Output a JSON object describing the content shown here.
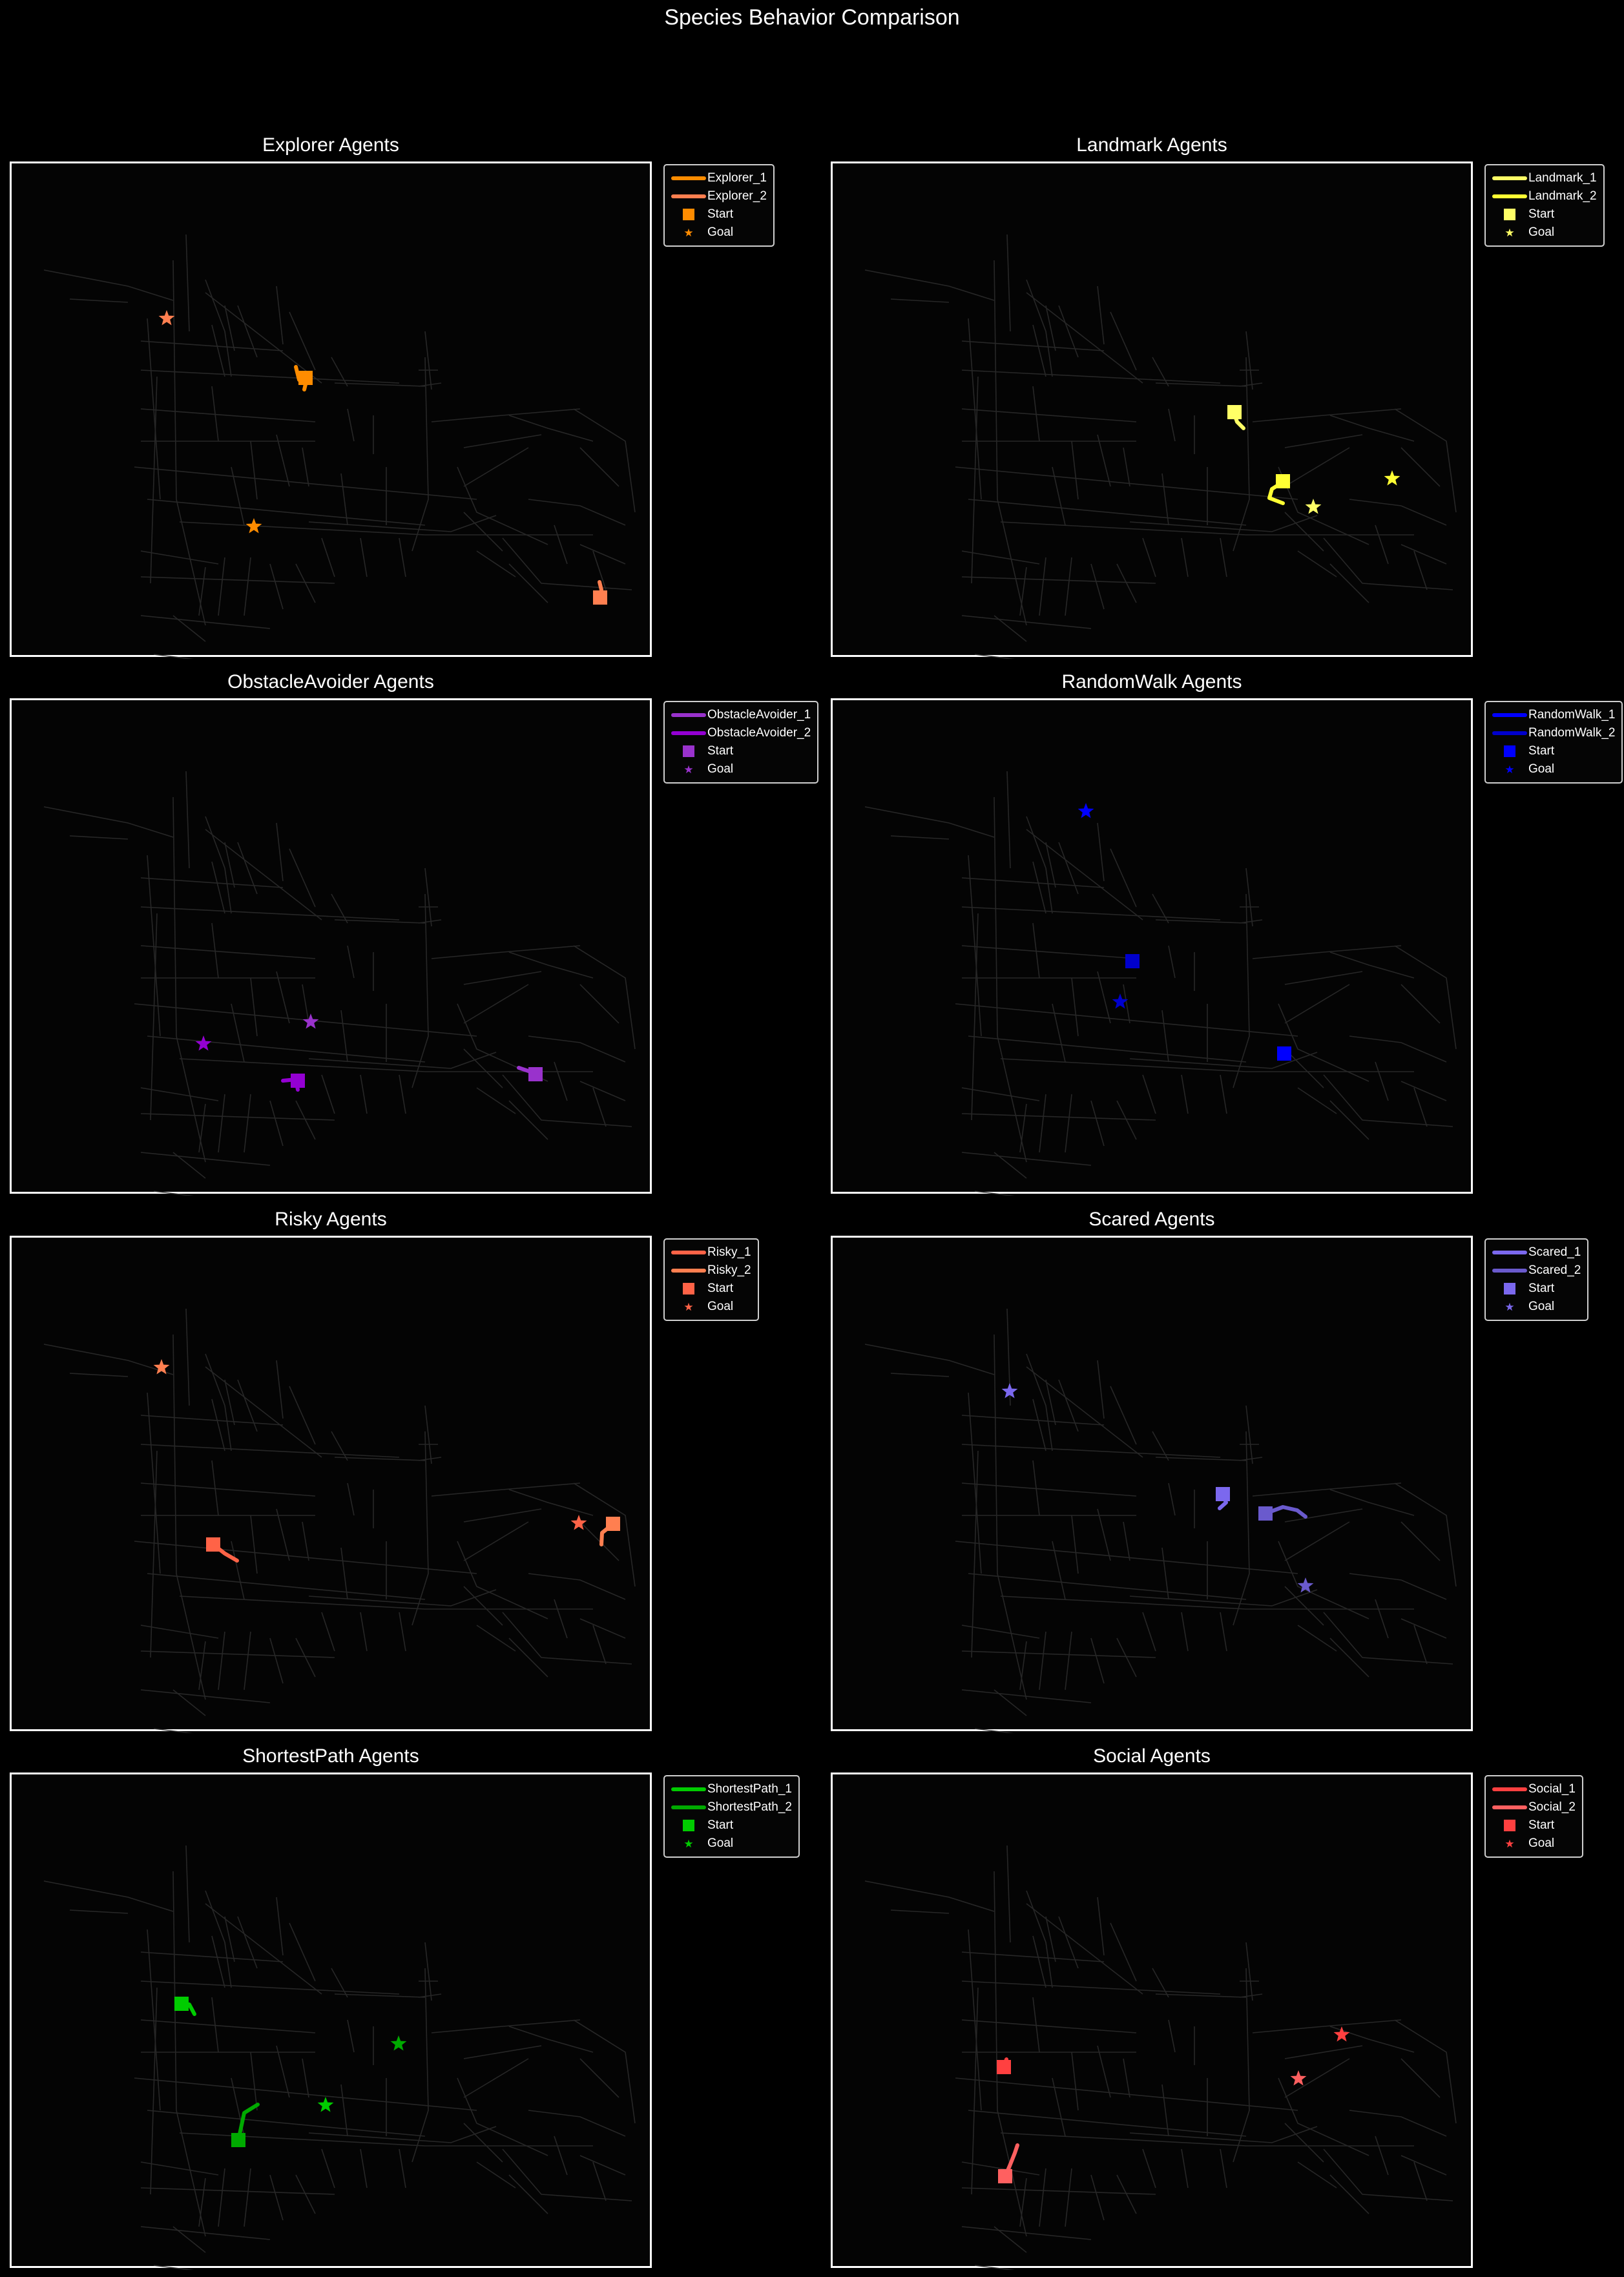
{
  "suptitle": "Species Behavior Comparison",
  "colors": {
    "background": "#000000",
    "map_roads": "#2b2b2b",
    "frame": "#ffffff"
  },
  "legend_labels": {
    "start": "Start",
    "goal": "Goal"
  },
  "chart_data": [
    {
      "type": "line",
      "title": "Explorer Agents",
      "color": "#ff8c00",
      "color2": "#ff7f50",
      "series": [
        {
          "name": "Explorer_1",
          "color": "#ff8c00",
          "path": [
            [
              455,
              565
            ],
            [
              460,
              585
            ],
            [
              470,
              592
            ],
            [
              468,
              600
            ]
          ],
          "start": [
            470,
            582
          ],
          "goal": [
            390,
            812
          ]
        },
        {
          "name": "Explorer_2",
          "color": "#ff7f50",
          "path": [
            [
              925,
              898
            ],
            [
              928,
              910
            ],
            [
              926,
              922
            ]
          ],
          "start": [
            926,
            922
          ],
          "goal": [
            255,
            490
          ]
        }
      ]
    },
    {
      "type": "line",
      "title": "Landmark Agents",
      "color": "#ffff66",
      "color2": "#ffff33",
      "series": [
        {
          "name": "Landmark_1",
          "color": "#ffff66",
          "path": [
            [
              1905,
              630
            ],
            [
              1912,
              650
            ],
            [
              1922,
              660
            ]
          ],
          "start": [
            1908,
            635
          ],
          "goal": [
            2030,
            782
          ]
        },
        {
          "name": "Landmark_2",
          "color": "#ffff33",
          "path": [
            [
              1985,
              742
            ],
            [
              1966,
              754
            ],
            [
              1962,
              768
            ],
            [
              1983,
              776
            ]
          ],
          "start": [
            1983,
            742
          ],
          "goal": [
            2152,
            738
          ]
        }
      ]
    },
    {
      "type": "line",
      "title": "ObstacleAvoider Agents",
      "color": "#9932cc",
      "color2": "#9400d3",
      "series": [
        {
          "name": "ObstacleAvoider_1",
          "color": "#9932cc",
          "path": [
            [
              800,
              1650
            ],
            [
              815,
              1655
            ],
            [
              826,
              1660
            ]
          ],
          "start": [
            826,
            1660
          ],
          "goal": [
            478,
            1579
          ]
        },
        {
          "name": "ObstacleAvoider_2",
          "color": "#9400d3",
          "path": [
            [
              435,
              1670
            ],
            [
              455,
              1668
            ],
            [
              458,
              1684
            ]
          ],
          "start": [
            458,
            1670
          ],
          "goal": [
            312,
            1613
          ]
        }
      ]
    },
    {
      "type": "line",
      "title": "RandomWalk Agents",
      "color": "#0000ff",
      "color2": "#0000cd",
      "series": [
        {
          "name": "RandomWalk_1",
          "color": "#0000ff",
          "path": [
            [
              1985,
              1628
            ],
            [
              1988,
              1630
            ]
          ],
          "start": [
            1985,
            1628
          ],
          "goal": [
            1678,
            1253
          ]
        },
        {
          "name": "RandomWalk_2",
          "color": "#0000cd",
          "path": [
            [
              1749,
              1485
            ],
            [
              1750,
              1487
            ]
          ],
          "start": [
            1750,
            1485
          ],
          "goal": [
            1731,
            1548
          ]
        }
      ]
    },
    {
      "type": "line",
      "title": "Risky Agents",
      "color": "#ff6347",
      "color2": "#ff7f50",
      "series": [
        {
          "name": "Risky_1",
          "color": "#ff6347",
          "path": [
            [
              327,
              2388
            ],
            [
              345,
              2402
            ],
            [
              364,
              2413
            ]
          ],
          "start": [
            327,
            2388
          ],
          "goal": [
            893,
            2355
          ]
        },
        {
          "name": "Risky_2",
          "color": "#ff7f50",
          "path": [
            [
              945,
              2357
            ],
            [
              929,
              2370
            ],
            [
              928,
              2388
            ]
          ],
          "start": [
            946,
            2356
          ],
          "goal": [
            247,
            2114
          ]
        }
      ]
    },
    {
      "type": "line",
      "title": "Scared Agents",
      "color": "#7b68ee",
      "color2": "#6a5acd",
      "series": [
        {
          "name": "Scared_1",
          "color": "#7b68ee",
          "path": [
            [
              1890,
              2310
            ],
            [
              1895,
              2323
            ],
            [
              1885,
              2332
            ]
          ],
          "start": [
            1890,
            2310
          ],
          "goal": [
            1560,
            2151
          ]
        },
        {
          "name": "Scared_2",
          "color": "#6a5acd",
          "path": [
            [
              1956,
              2340
            ],
            [
              1983,
              2330
            ],
            [
              2005,
              2335
            ],
            [
              2018,
              2345
            ]
          ],
          "start": [
            1956,
            2340
          ],
          "goal": [
            2018,
            2452
          ]
        }
      ]
    },
    {
      "type": "line",
      "title": "ShortestPath Agents",
      "color": "#00cc00",
      "color2": "#00aa00",
      "series": [
        {
          "name": "ShortestPath_1",
          "color": "#00cc00",
          "path": [
            [
              278,
              3099
            ],
            [
              290,
              3100
            ],
            [
              298,
              3115
            ]
          ],
          "start": [
            278,
            3099
          ],
          "goal": [
            501,
            3256
          ]
        },
        {
          "name": "ShortestPath_2",
          "color": "#00aa00",
          "path": [
            [
              366,
              3310
            ],
            [
              375,
              3268
            ],
            [
              396,
              3255
            ]
          ],
          "start": [
            366,
            3310
          ],
          "goal": [
            614,
            3161
          ]
        }
      ]
    },
    {
      "type": "line",
      "title": "Social Agents",
      "color": "#ff4040",
      "color2": "#ff3030",
      "series": [
        {
          "name": "Social_1",
          "color": "#ff4040",
          "path": [
            [
              1551,
              3197
            ],
            [
              1555,
              3185
            ]
          ],
          "start": [
            1551,
            3197
          ],
          "goal": [
            2074,
            3147
          ]
        },
        {
          "name": "Social_2",
          "color": "#ff6060",
          "path": [
            [
              1553,
              3366
            ],
            [
              1560,
              3350
            ],
            [
              1568,
              3330
            ],
            [
              1572,
              3318
            ]
          ],
          "start": [
            1553,
            3366
          ],
          "goal": [
            2007,
            3215
          ]
        }
      ]
    }
  ]
}
